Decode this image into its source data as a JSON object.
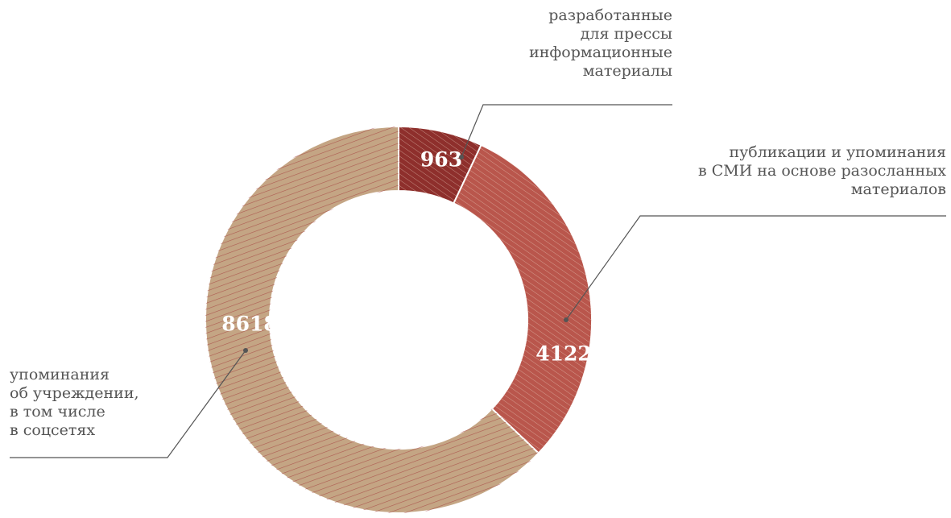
{
  "chart_data": {
    "type": "donut",
    "categories": [
      "разработанные\nдля прессы\nинформационные\nматериалы",
      "публикации и упоминания\nв СМИ на основе разосланных\nматериалов",
      "упоминания\nоб учреждении,\nв том числе\nв соцсетях"
    ],
    "values": [
      963,
      4122,
      8618
    ],
    "colors": [
      "#8e2f2c",
      "#b9564c",
      "#c4a584"
    ]
  }
}
